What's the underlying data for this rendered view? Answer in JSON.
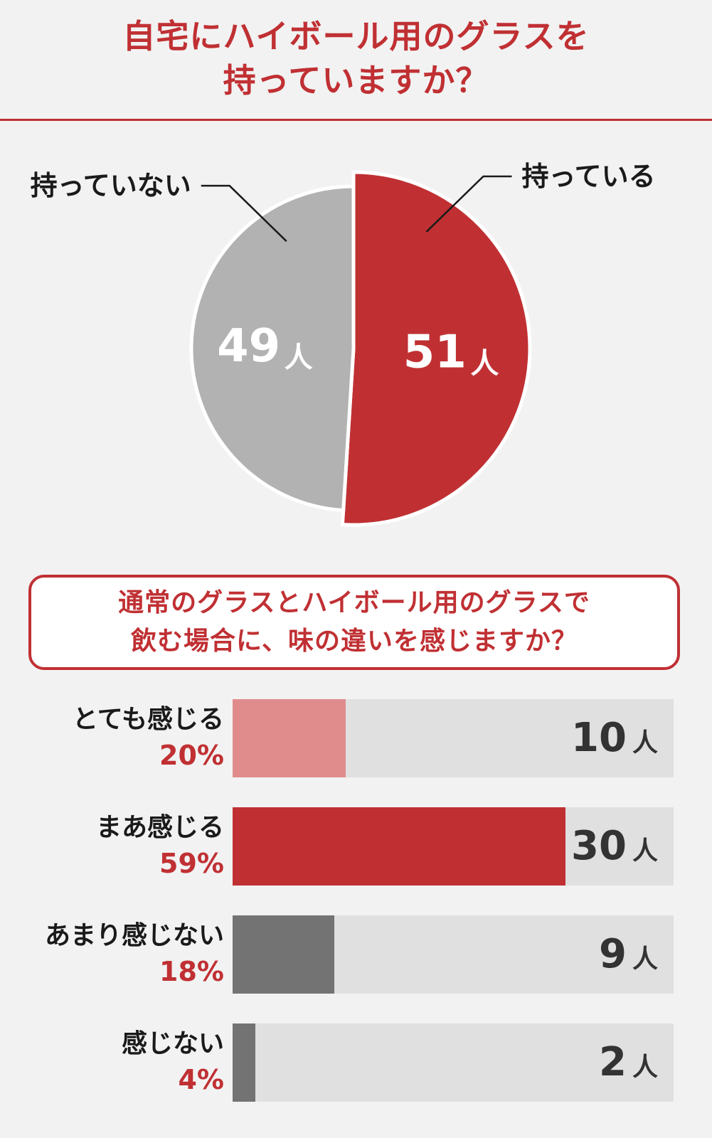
{
  "title": {
    "line1": "自宅にハイボール用のグラスを",
    "line2": "持っていますか？"
  },
  "colors": {
    "accent": "#c03033",
    "gray": "#b3b2b3",
    "pink": "#e08c8d",
    "dark_gray": "#737373",
    "track": "#e0e0e0"
  },
  "chart_data": [
    {
      "type": "pie",
      "title": "自宅にハイボール用のグラスを持っていますか？",
      "slices": [
        {
          "label": "持っている",
          "value": 51,
          "unit": "人",
          "color": "#c03033"
        },
        {
          "label": "持っていない",
          "value": 49,
          "unit": "人",
          "color": "#b3b2b3"
        }
      ]
    },
    {
      "type": "bar",
      "orientation": "horizontal",
      "title": "通常のグラスとハイボール用のグラスで飲む場合に、味の違いを感じますか？",
      "categories": [
        "とても感じる",
        "まあ感じる",
        "あまり感じない",
        "感じない"
      ],
      "percent_labels": [
        "20%",
        "59%",
        "18%",
        "4%"
      ],
      "percents": [
        20,
        59,
        18,
        4
      ],
      "counts": [
        10,
        30,
        9,
        2
      ],
      "unit": "人",
      "colors": [
        "#e08c8d",
        "#c03033",
        "#737373",
        "#737373"
      ],
      "xlim": [
        0,
        100
      ]
    }
  ],
  "question2": {
    "line1": "通常のグラスとハイボール用のグラスで",
    "line2": "飲む場合に、味の違いを感じますか？"
  }
}
